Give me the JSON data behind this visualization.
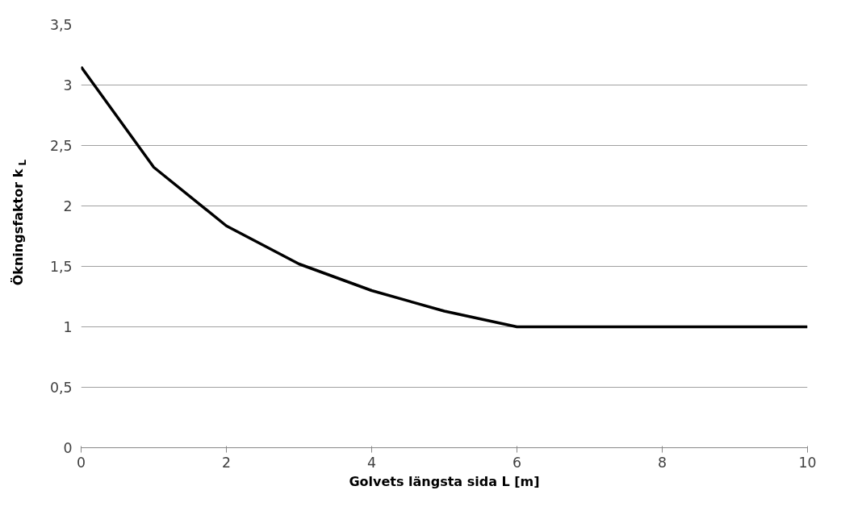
{
  "chart_data": {
    "type": "line",
    "xlabel": "Golvets längsta sida L [m]",
    "ylabel": "Ökningsfaktor k$_{L}$",
    "x": [
      0,
      1,
      2,
      3,
      4,
      5,
      6,
      10
    ],
    "series": [
      {
        "color": "#000000",
        "values": [
          3.15,
          2.32,
          1.835,
          1.52,
          1.3,
          1.13,
          1.0,
          1.0
        ]
      }
    ],
    "xlim": [
      0,
      10
    ],
    "xticks": [
      0,
      2,
      4,
      6,
      8,
      10
    ],
    "ylim": [
      0,
      3.5
    ],
    "yticks": [
      0,
      {
        "value": 0.5,
        "label": "0,5"
      },
      1,
      {
        "value": 1.5,
        "label": "1,5"
      },
      2,
      {
        "value": 2.5,
        "label": "2,5"
      },
      3,
      {
        "value": 3.5,
        "label": "3,5"
      }
    ],
    "grid": "y",
    "marker": "none",
    "line_style": "solid"
  }
}
